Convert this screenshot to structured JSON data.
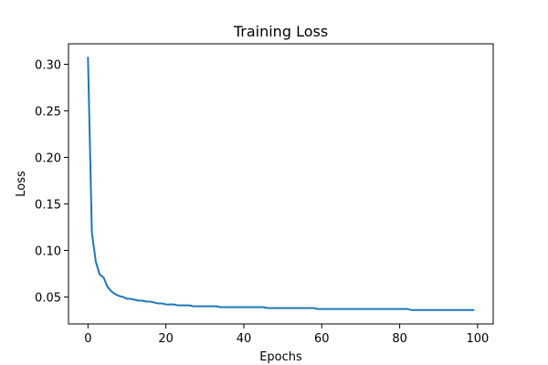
{
  "chart_data": {
    "type": "line",
    "title": "Training Loss",
    "xlabel": "Epochs",
    "ylabel": "Loss",
    "xlim": [
      -5,
      104
    ],
    "ylim": [
      0.021,
      0.322
    ],
    "xticks": [
      0,
      20,
      40,
      60,
      80,
      100
    ],
    "xtick_labels": [
      "0",
      "20",
      "40",
      "60",
      "80",
      "100"
    ],
    "yticks": [
      0.05,
      0.1,
      0.15,
      0.2,
      0.25,
      0.3
    ],
    "ytick_labels": [
      "0.05",
      "0.10",
      "0.15",
      "0.20",
      "0.25",
      "0.30"
    ],
    "grid": false,
    "series": [
      {
        "color": "#1f77b4",
        "x": [
          0,
          1,
          2,
          3,
          4,
          5,
          6,
          7,
          8,
          9,
          10,
          11,
          12,
          13,
          14,
          15,
          16,
          17,
          18,
          19,
          20,
          21,
          22,
          23,
          24,
          25,
          26,
          27,
          28,
          29,
          30,
          31,
          32,
          33,
          34,
          35,
          36,
          37,
          38,
          39,
          40,
          41,
          42,
          43,
          44,
          45,
          46,
          47,
          48,
          49,
          50,
          51,
          52,
          53,
          54,
          55,
          56,
          57,
          58,
          59,
          60,
          61,
          62,
          63,
          64,
          65,
          66,
          67,
          68,
          69,
          70,
          71,
          72,
          73,
          74,
          75,
          76,
          77,
          78,
          79,
          80,
          81,
          82,
          83,
          84,
          85,
          86,
          87,
          88,
          89,
          90,
          91,
          92,
          93,
          94,
          95,
          96,
          97,
          98,
          99
        ],
        "y": [
          0.307,
          0.119,
          0.088,
          0.074,
          0.071,
          0.061,
          0.056,
          0.053,
          0.051,
          0.05,
          0.048,
          0.048,
          0.047,
          0.046,
          0.046,
          0.045,
          0.045,
          0.044,
          0.043,
          0.043,
          0.042,
          0.042,
          0.042,
          0.041,
          0.041,
          0.041,
          0.041,
          0.04,
          0.04,
          0.04,
          0.04,
          0.04,
          0.04,
          0.04,
          0.039,
          0.039,
          0.039,
          0.039,
          0.039,
          0.039,
          0.039,
          0.039,
          0.039,
          0.039,
          0.039,
          0.039,
          0.038,
          0.038,
          0.038,
          0.038,
          0.038,
          0.038,
          0.038,
          0.038,
          0.038,
          0.038,
          0.038,
          0.038,
          0.038,
          0.037,
          0.037,
          0.037,
          0.037,
          0.037,
          0.037,
          0.037,
          0.037,
          0.037,
          0.037,
          0.037,
          0.037,
          0.037,
          0.037,
          0.037,
          0.037,
          0.037,
          0.037,
          0.037,
          0.037,
          0.037,
          0.037,
          0.037,
          0.037,
          0.036,
          0.036,
          0.036,
          0.036,
          0.036,
          0.036,
          0.036,
          0.036,
          0.036,
          0.036,
          0.036,
          0.036,
          0.036,
          0.036,
          0.036,
          0.036,
          0.036
        ]
      }
    ]
  }
}
